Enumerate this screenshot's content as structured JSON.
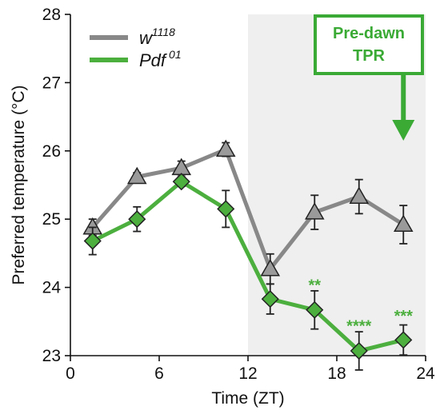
{
  "chart_data": {
    "type": "line",
    "xlabel": "Time (ZT)",
    "ylabel": "Preferred temperature (°C)",
    "xlim": [
      0,
      24
    ],
    "ylim": [
      23,
      28
    ],
    "x_ticks": [
      "0",
      "6",
      "12",
      "18",
      "24"
    ],
    "y_ticks": [
      "23",
      "24",
      "25",
      "26",
      "27",
      "28"
    ],
    "shaded_region": {
      "x_start": 12,
      "x_end": 24,
      "color": "#efefef"
    },
    "series": [
      {
        "name": "w",
        "name_sup": "1118",
        "color": "#888888",
        "fill": "#9a9a9a",
        "marker": "triangle",
        "x": [
          1.5,
          4.5,
          7.5,
          10.5,
          13.5,
          16.5,
          19.5,
          22.5
        ],
        "y": [
          24.88,
          25.62,
          25.75,
          26.02,
          24.27,
          25.1,
          25.33,
          24.92
        ],
        "err": [
          0.12,
          0.06,
          0.1,
          0.1,
          0.22,
          0.25,
          0.25,
          0.28
        ]
      },
      {
        "name": "Pdf",
        "name_sup": "01",
        "color": "#4caf3e",
        "fill": "#4caf3e",
        "marker": "diamond",
        "x": [
          1.5,
          4.5,
          7.5,
          10.5,
          13.5,
          16.5,
          19.5,
          22.5
        ],
        "y": [
          24.68,
          25.0,
          25.55,
          25.15,
          23.83,
          23.67,
          23.07,
          23.23
        ],
        "err": [
          0.2,
          0.18,
          0.07,
          0.27,
          0.22,
          0.28,
          0.28,
          0.22
        ]
      }
    ],
    "annotations": [
      {
        "text": "**",
        "x": 16.5,
        "y": 24.05,
        "color": "#4caf3e"
      },
      {
        "text": "****",
        "x": 19.5,
        "y": 23.45,
        "color": "#4caf3e"
      },
      {
        "text": "***",
        "x": 22.5,
        "y": 23.6,
        "color": "#4caf3e"
      }
    ],
    "callout": {
      "lines": [
        "Pre-dawn",
        "TPR"
      ],
      "color": "#3aaa35",
      "target_x": 22.5
    },
    "legend_position": "top-left"
  }
}
